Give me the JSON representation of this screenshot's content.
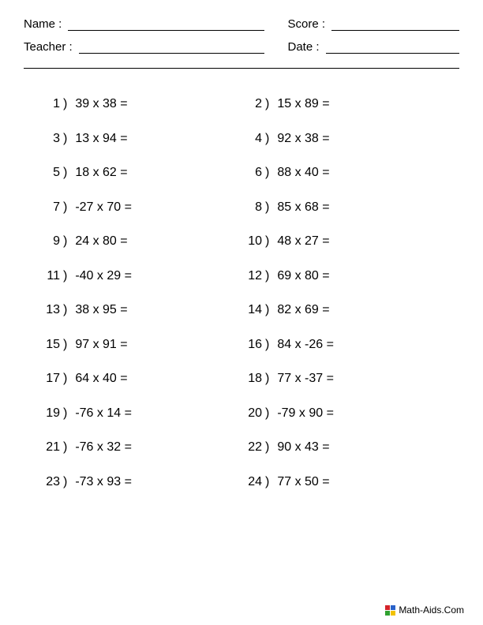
{
  "header": {
    "name_label": "Name :",
    "teacher_label": "Teacher :",
    "score_label": "Score :",
    "date_label": "Date :"
  },
  "problems": [
    {
      "n": "1",
      "a": "39",
      "b": "38"
    },
    {
      "n": "2",
      "a": "15",
      "b": "89"
    },
    {
      "n": "3",
      "a": "13",
      "b": "94"
    },
    {
      "n": "4",
      "a": "92",
      "b": "38"
    },
    {
      "n": "5",
      "a": "18",
      "b": "62"
    },
    {
      "n": "6",
      "a": "88",
      "b": "40"
    },
    {
      "n": "7",
      "a": "-27",
      "b": "70"
    },
    {
      "n": "8",
      "a": "85",
      "b": "68"
    },
    {
      "n": "9",
      "a": "24",
      "b": "80"
    },
    {
      "n": "10",
      "a": "48",
      "b": "27"
    },
    {
      "n": "11",
      "a": "-40",
      "b": "29"
    },
    {
      "n": "12",
      "a": "69",
      "b": "80"
    },
    {
      "n": "13",
      "a": "38",
      "b": "95"
    },
    {
      "n": "14",
      "a": "82",
      "b": "69"
    },
    {
      "n": "15",
      "a": "97",
      "b": "91"
    },
    {
      "n": "16",
      "a": "84",
      "b": "-26"
    },
    {
      "n": "17",
      "a": "64",
      "b": "40"
    },
    {
      "n": "18",
      "a": "77",
      "b": "-37"
    },
    {
      "n": "19",
      "a": "-76",
      "b": "14"
    },
    {
      "n": "20",
      "a": "-79",
      "b": "90"
    },
    {
      "n": "21",
      "a": "-76",
      "b": "32"
    },
    {
      "n": "22",
      "a": "90",
      "b": "43"
    },
    {
      "n": "23",
      "a": "-73",
      "b": "93"
    },
    {
      "n": "24",
      "a": "77",
      "b": "50"
    }
  ],
  "symbols": {
    "times": "x",
    "equals": "=",
    "paren": ")"
  },
  "footer": {
    "text": "Math-Aids.Com",
    "logo_colors": [
      "#d4232a",
      "#2a62c9",
      "#2fa12f",
      "#f2c200"
    ]
  },
  "style": {
    "page_bg": "#ffffff",
    "text_color": "#000000",
    "font_size_body": 16,
    "font_size_header": 15,
    "font_size_footer": 12
  }
}
